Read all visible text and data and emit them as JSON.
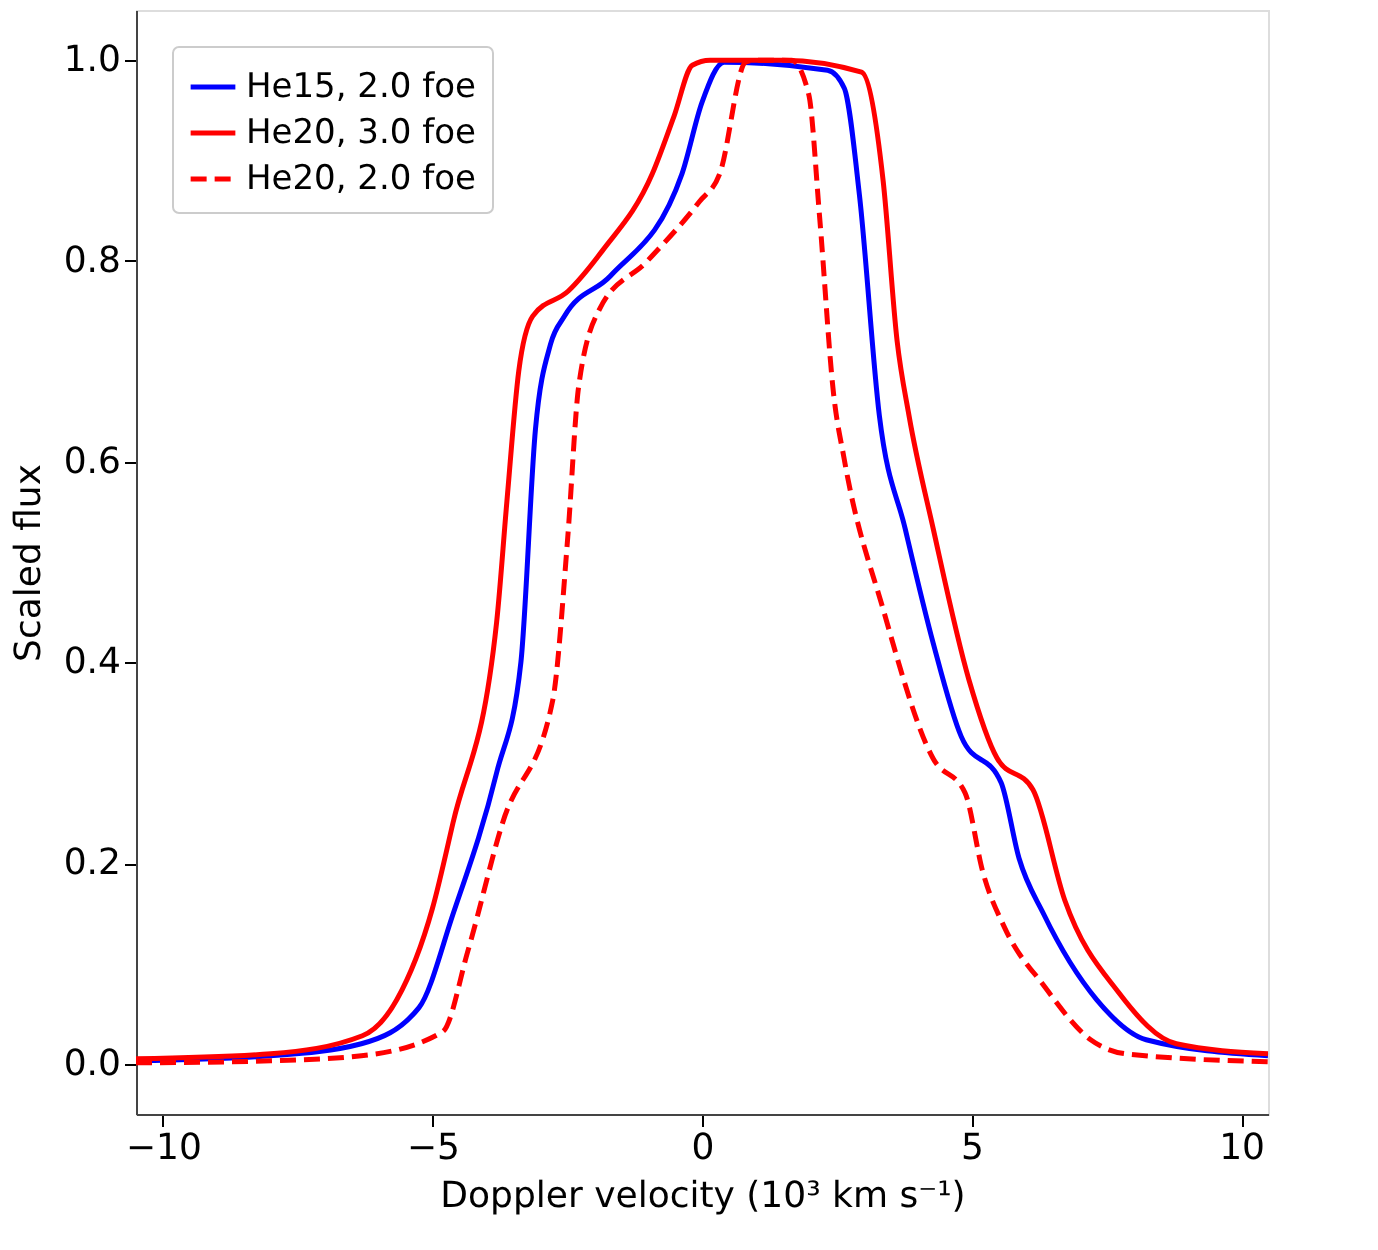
{
  "chart_data": {
    "type": "line",
    "xlabel": "Doppler velocity (10³ km s⁻¹)",
    "ylabel": "Scaled flux",
    "xlim": [
      -10.5,
      10.5
    ],
    "ylim": [
      -0.05,
      1.05
    ],
    "xticks": [
      -10,
      -5,
      0,
      5,
      10
    ],
    "yticks": [
      {
        "value": 0,
        "label": "0.0"
      },
      0.2,
      0.4,
      0.6,
      0.8,
      {
        "value": 1,
        "label": "1.0"
      }
    ],
    "grid": false,
    "legend": "top left",
    "marker": "none",
    "series": [
      {
        "name": "He15, 2.0 foe",
        "color": "#0000ff",
        "line_style": "solid",
        "x": [
          -10.5,
          -8,
          -6.32,
          -5.25,
          -4.62,
          -3.81,
          -3.36,
          -3.09,
          -2.81,
          -2.55,
          -1.7,
          -0.37,
          0,
          0.41,
          2.33,
          2.64,
          2.92,
          3.29,
          3.77,
          4.29,
          4.81,
          5.55,
          5.88,
          6.34,
          7.32,
          8.24,
          10.5
        ],
        "values": [
          0.003,
          0.008,
          0.02,
          0.056,
          0.149,
          0.29,
          0.4,
          0.632,
          0.717,
          0.745,
          0.785,
          0.887,
          0.958,
          0.998,
          0.99,
          0.972,
          0.866,
          0.646,
          0.533,
          0.419,
          0.326,
          0.28,
          0.205,
          0.149,
          0.064,
          0.024,
          0.008
        ]
      },
      {
        "name": "He20, 3.0 foe",
        "color": "#ff0000",
        "line_style": "solid",
        "x": [
          -10.5,
          -8,
          -6.3,
          -5.66,
          -5.0,
          -4.62,
          -3.81,
          -3.62,
          -3.4,
          -3.14,
          -2.48,
          -1.85,
          -0.92,
          -0.52,
          -0.18,
          0.15,
          1.5,
          2.96,
          3.36,
          3.62,
          3.84,
          4.29,
          4.95,
          5.47,
          6.14,
          6.73,
          7.73,
          8.8,
          10.5
        ],
        "values": [
          0.005,
          0.01,
          0.028,
          0.064,
          0.155,
          0.24,
          0.44,
          0.56,
          0.69,
          0.745,
          0.77,
          0.81,
          0.887,
          0.944,
          0.995,
          1.0,
          1.0,
          0.988,
          0.88,
          0.72,
          0.646,
          0.533,
          0.383,
          0.305,
          0.273,
          0.163,
          0.071,
          0.02,
          0.01
        ]
      },
      {
        "name": "He20, 2.0 foe",
        "color": "#ff0000",
        "line_style": "dashed",
        "x": [
          -10.5,
          -8,
          -6.32,
          -4.81,
          -4.34,
          -3.7,
          -2.77,
          -2.49,
          -2.29,
          -1.9,
          -1.03,
          -0.05,
          0.33,
          0.81,
          1.0,
          1.66,
          1.98,
          2.18,
          2.44,
          2.64,
          3.36,
          4.29,
          4.88,
          5.21,
          5.62,
          6.34,
          7.21,
          7.86,
          10.5
        ],
        "values": [
          0.001,
          0.003,
          0.008,
          0.032,
          0.113,
          0.24,
          0.362,
          0.525,
          0.674,
          0.752,
          0.799,
          0.859,
          0.887,
          0.998,
          1.0,
          1.0,
          0.966,
          0.845,
          0.668,
          0.602,
          0.453,
          0.304,
          0.27,
          0.191,
          0.135,
          0.078,
          0.024,
          0.01,
          0.002
        ]
      }
    ]
  }
}
